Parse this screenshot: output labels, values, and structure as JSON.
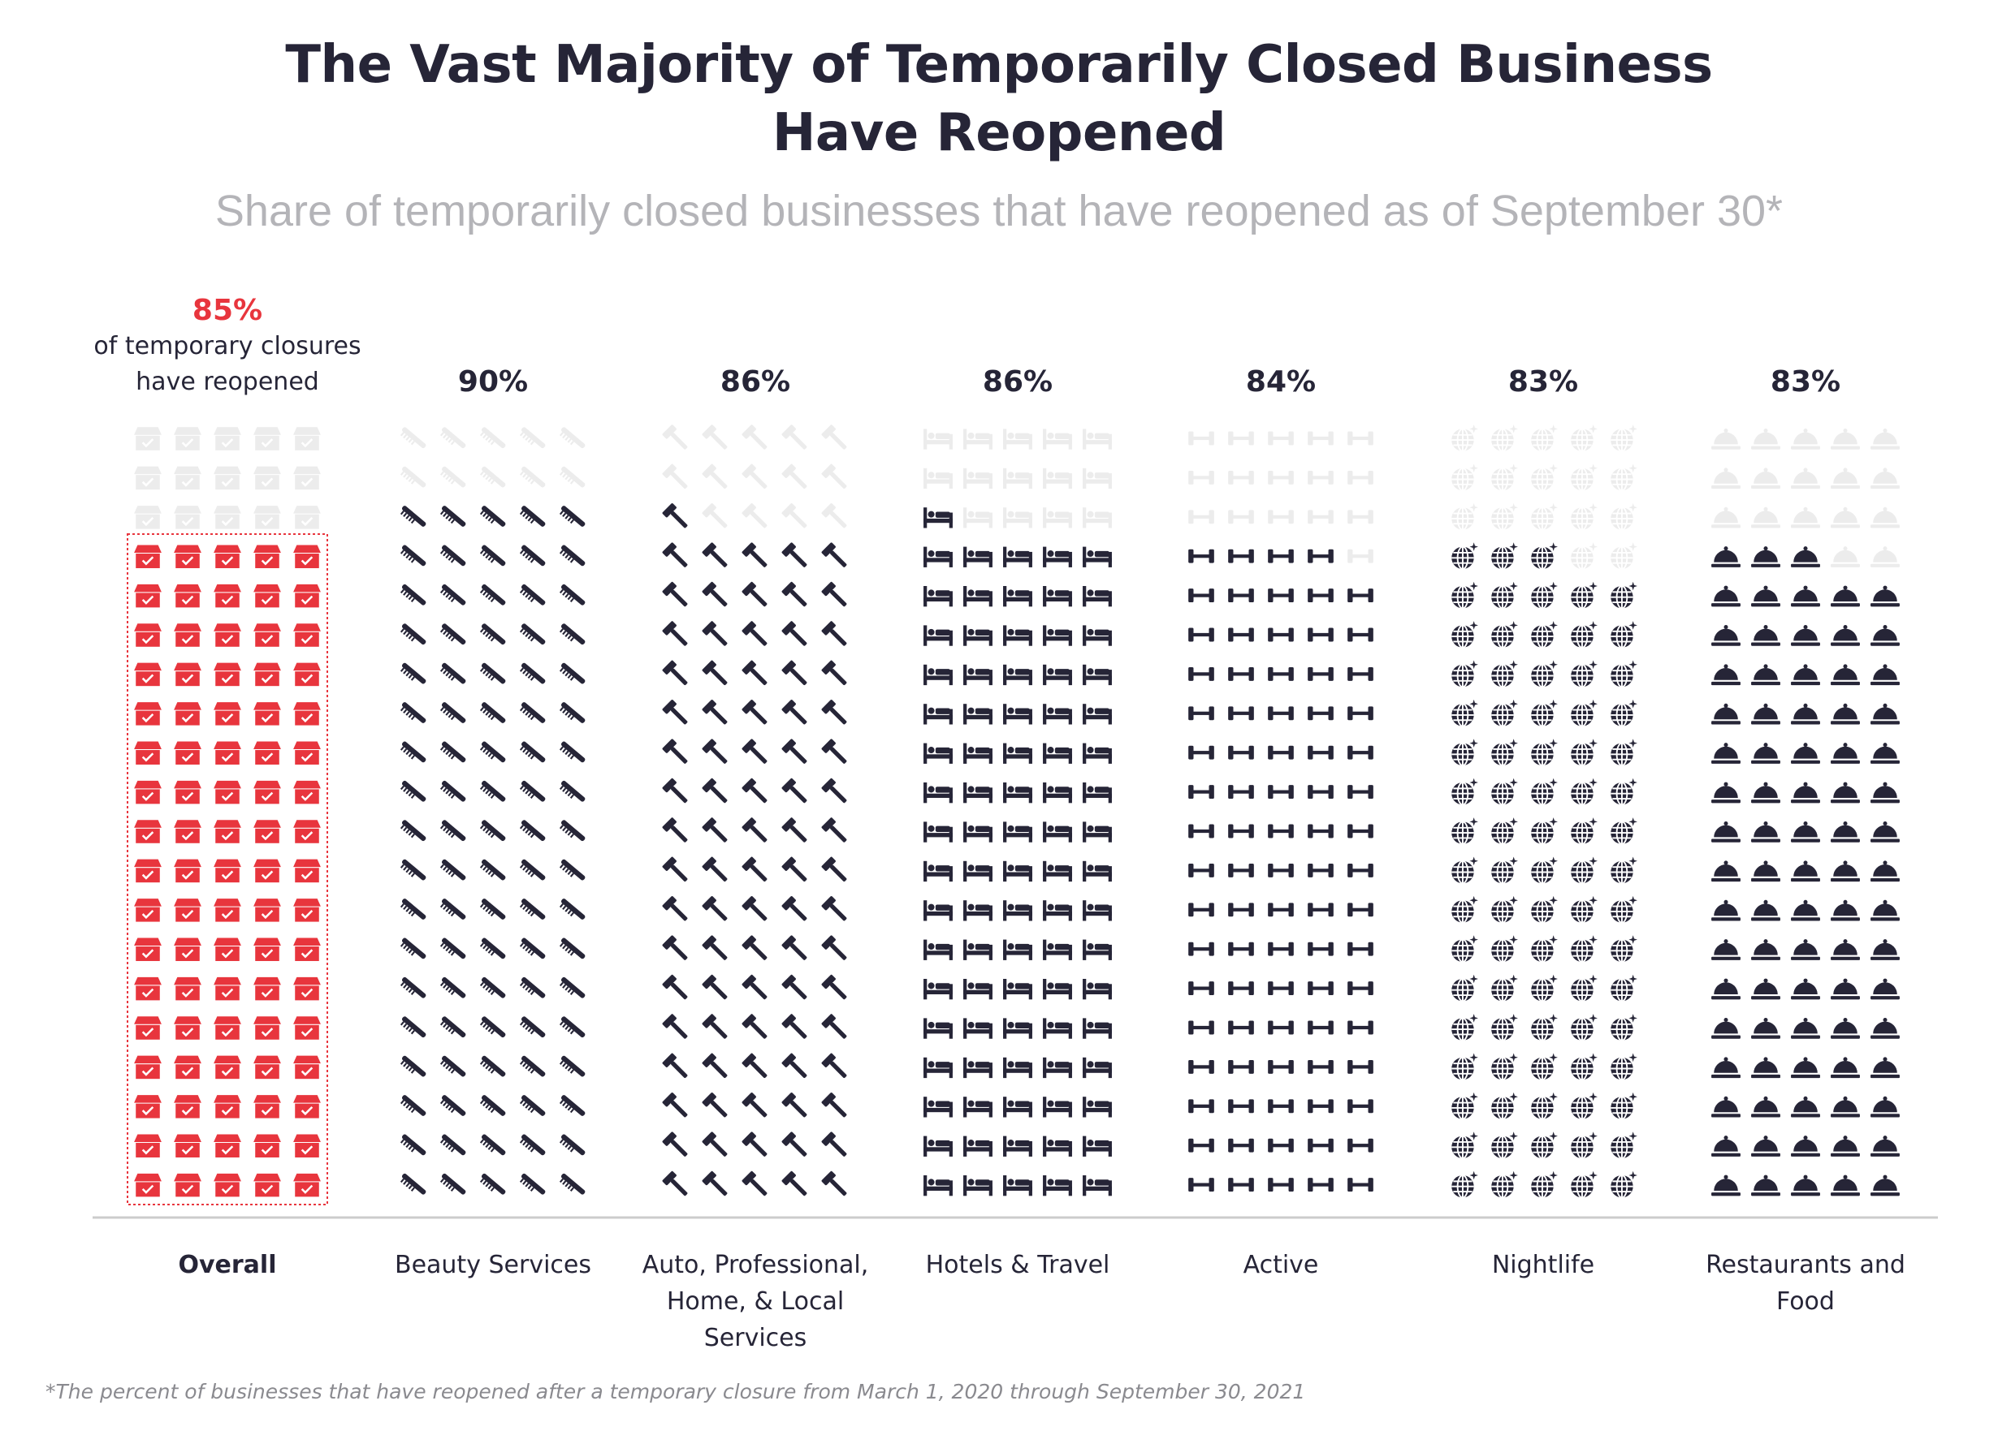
{
  "title_line1": "The Vast Majority of Temporarily Closed Business",
  "title_line2": "Have Reopened",
  "subtitle": "Share of temporarily closed businesses that have reopened as of September 30*",
  "footnote": "*The percent of businesses that have reopened after a temporary closure from March 1, 2020 through September 30, 2021",
  "overall_caption": [
    "of temporary closures",
    "have reopened"
  ],
  "colors": {
    "title": "#262537",
    "subtitle": "#b4b4b8",
    "accent": "#e8353d",
    "filled": "#262537",
    "empty": "#ececec",
    "axis": "#cccccc",
    "footnote": "#8a8a8f"
  },
  "chart_data": {
    "type": "pictograph",
    "title": "The Vast Majority of Temporarily Closed Business Have Reopened",
    "subtitle": "Share of temporarily closed businesses that have reopened as of September 30*",
    "unit": "percent",
    "icons_per_column": 100,
    "grid": "5 columns x 20 rows",
    "categories": [
      "Overall",
      "Beauty Services",
      "Auto, Professional, Home, & Local Services",
      "Hotels & Travel",
      "Active",
      "Nightlife",
      "Restaurants and Food"
    ],
    "category_label_lines": [
      [
        "Overall"
      ],
      [
        "Beauty Services"
      ],
      [
        "Auto, Professional,",
        "Home, & Local",
        "Services"
      ],
      [
        "Hotels & Travel"
      ],
      [
        "Active"
      ],
      [
        "Nightlife"
      ],
      [
        "Restaurants and",
        "Food"
      ]
    ],
    "values": [
      85,
      90,
      86,
      86,
      84,
      83,
      83
    ],
    "value_labels": [
      "85%",
      "90%",
      "86%",
      "86%",
      "84%",
      "83%",
      "83%"
    ],
    "icons": [
      "store-icon",
      "comb-icon",
      "hammer-icon",
      "bed-icon",
      "dumbbell-icon",
      "disco-ball-icon",
      "cloche-icon"
    ],
    "highlight": "Overall"
  }
}
